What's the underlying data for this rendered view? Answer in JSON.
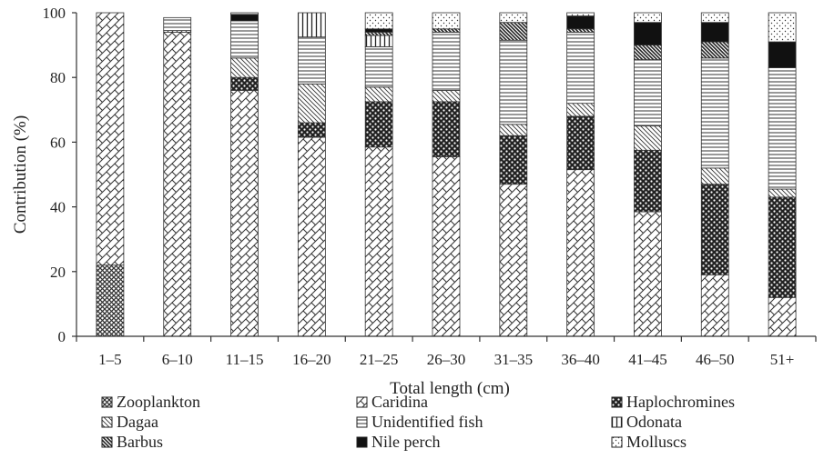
{
  "chart_data": {
    "type": "bar",
    "stacked": true,
    "title": "",
    "xlabel": "Total length (cm)",
    "ylabel": "Contribution (%)",
    "ylim": [
      0,
      100
    ],
    "yticks": [
      "0",
      "20",
      "40",
      "60",
      "80",
      "100"
    ],
    "grid": false,
    "legend_position": "bottom",
    "categories": [
      "1–5",
      "6–10",
      "11–15",
      "16–20",
      "21–25",
      "26–30",
      "31–35",
      "36–40",
      "41–45",
      "46–50",
      "51+"
    ],
    "series": [
      {
        "name": "Zooplankton",
        "pattern": "crosshatch",
        "values": [
          22,
          0,
          0,
          0,
          0,
          0,
          0,
          0,
          0,
          0,
          0
        ]
      },
      {
        "name": "Caridina",
        "pattern": "diagonal",
        "values": [
          78,
          94,
          76,
          61.5,
          58.5,
          55.5,
          47,
          51.5,
          38.5,
          19,
          12
        ]
      },
      {
        "name": "Haplochromines",
        "pattern": "dots",
        "values": [
          0,
          0,
          4,
          4.5,
          14,
          17,
          15,
          16.5,
          19,
          28,
          31
        ]
      },
      {
        "name": "Dagaa",
        "pattern": "backslash",
        "values": [
          0,
          0.5,
          6,
          12,
          4.5,
          3.5,
          3.5,
          4,
          7.5,
          5,
          2.5
        ]
      },
      {
        "name": "Unidentified fish",
        "pattern": "hlines",
        "values": [
          0,
          4,
          11.5,
          14.5,
          12.5,
          18,
          26,
          22,
          20.5,
          34,
          37.5
        ]
      },
      {
        "name": "Odonata",
        "pattern": "vlines",
        "values": [
          0,
          0,
          0,
          7.5,
          3.5,
          0,
          0,
          0,
          0,
          0,
          0
        ]
      },
      {
        "name": "Barbus",
        "pattern": "heavy-backslash",
        "values": [
          0,
          0,
          0,
          0,
          1,
          1,
          5.5,
          1,
          4.5,
          5,
          0
        ]
      },
      {
        "name": "Nile perch",
        "pattern": "solid",
        "values": [
          0,
          0,
          2,
          0,
          1,
          0,
          0,
          4,
          7,
          6,
          8
        ]
      },
      {
        "name": "Molluscs",
        "pattern": "stipple",
        "values": [
          0,
          0,
          0.5,
          0,
          5,
          5,
          3,
          1,
          3,
          3,
          9
        ]
      }
    ]
  }
}
